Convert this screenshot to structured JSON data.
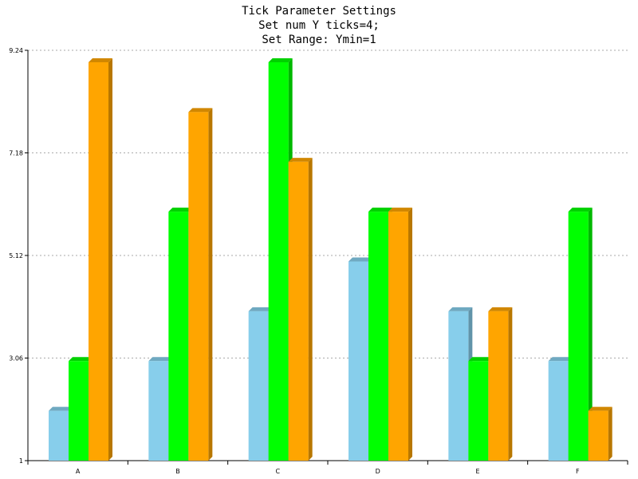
{
  "titles": [
    "Tick Parameter Settings",
    "Set num Y ticks=4;",
    "Set Range: Ymin=1"
  ],
  "chart_data": {
    "type": "bar",
    "title": "Tick Parameter Settings",
    "subtitle": [
      "Set num Y ticks=4;",
      "Set Range: Ymin=1"
    ],
    "categories": [
      "A",
      "B",
      "C",
      "D",
      "E",
      "F"
    ],
    "series": [
      {
        "values": [
          2,
          3,
          4,
          5,
          4,
          3
        ],
        "color": "#87ceeb"
      },
      {
        "values": [
          3,
          6,
          9,
          6,
          3,
          6
        ],
        "color": "#00ff00"
      },
      {
        "values": [
          9,
          8,
          7,
          6,
          4,
          2
        ],
        "color": "#ffa500"
      }
    ],
    "yticks": [
      "1",
      "3.06",
      "5.12",
      "7.18",
      "9.24"
    ],
    "ylim": [
      1,
      9.24
    ],
    "grid": true,
    "style": "3d-bars"
  }
}
